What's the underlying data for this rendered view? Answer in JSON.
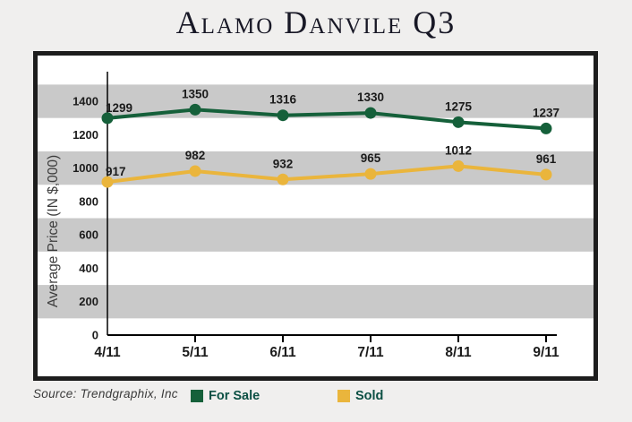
{
  "page": {
    "title": "Alamo Danvile Q3",
    "source_note": "Source: Trendgraphix, Inc"
  },
  "colors": {
    "for_sale_green": "#15603a",
    "sold_gold": "#eab53c",
    "band_gray": "#c9c9c9",
    "box_border": "#1d1d1d",
    "page_background": "#f0efee",
    "legend_text": "#0c5044",
    "title_text": "#181826",
    "axis_text": "#1c1c1c",
    "axis_line": "#000000"
  },
  "legend": {
    "items": [
      {
        "label": "For Sale",
        "color": "#15603a"
      },
      {
        "label": "Sold",
        "color": "#eab53c"
      }
    ]
  },
  "chart_data": {
    "type": "line",
    "title": "Alamo Danvile Q3",
    "categories": [
      "4/11",
      "5/11",
      "6/11",
      "7/11",
      "8/11",
      "9/11"
    ],
    "series": [
      {
        "name": "For Sale",
        "color": "#15603a",
        "values": [
          1299,
          1350,
          1316,
          1330,
          1275,
          1237
        ]
      },
      {
        "name": "Sold",
        "color": "#eab53c",
        "values": [
          917,
          982,
          932,
          965,
          1012,
          961
        ]
      }
    ],
    "xlabel": "",
    "ylabel": "Average Price (IN $,000)",
    "ylim": [
      0,
      1600
    ],
    "ytick_step": 200,
    "ytick_labels": [
      "0",
      "200",
      "400",
      "600",
      "800",
      "1000",
      "1200",
      "1400"
    ],
    "grid": "alternating horizontal gray bands",
    "band_value_ranges": [
      [
        100,
        300
      ],
      [
        500,
        700
      ],
      [
        900,
        1100
      ],
      [
        1300,
        1500
      ]
    ],
    "legend_position": "bottom",
    "data_labels_shown": true
  }
}
